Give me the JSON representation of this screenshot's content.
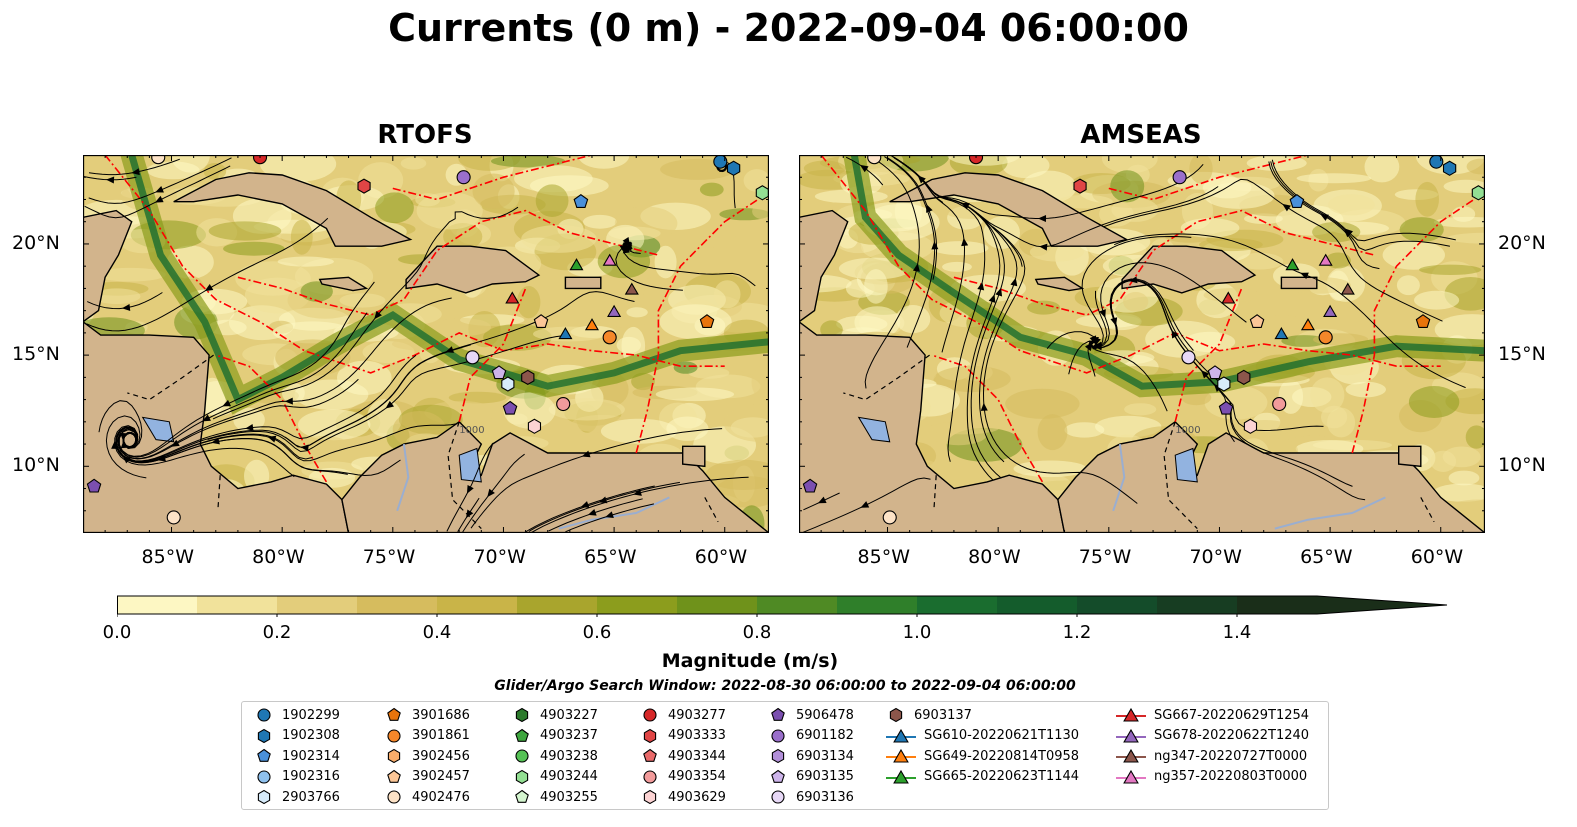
{
  "title": "Currents (0 m) - 2022-09-04 06:00:00",
  "panels": [
    {
      "title": "RTOFS"
    },
    {
      "title": "AMSEAS"
    }
  ],
  "axes": {
    "lon_ticks": [
      "85°W",
      "80°W",
      "75°W",
      "70°W",
      "65°W",
      "60°W"
    ],
    "lat_ticks": [
      "20°N",
      "15°N",
      "10°N"
    ],
    "lon_range": [
      -89,
      -58
    ],
    "lat_range": [
      7,
      24
    ]
  },
  "colorbar": {
    "label": "Magnitude (m/s)",
    "ticks": [
      "0.0",
      "0.2",
      "0.4",
      "0.6",
      "0.8",
      "1.0",
      "1.2",
      "1.4"
    ],
    "range": [
      0,
      1.6
    ],
    "extend": "max",
    "colors": [
      "#fdf7c3",
      "#f1e29b",
      "#e3cd7b",
      "#d6bc5e",
      "#c9b448",
      "#a9a52d",
      "#8c9d1d",
      "#6f921b",
      "#4f8a24",
      "#2f7f2a",
      "#1a6d2f",
      "#145c2c",
      "#144c2a",
      "#173d22",
      "#1a2e19"
    ]
  },
  "contour_label": "1000",
  "search_window": "Glider/Argo Search Window: 2022-08-30 06:00:00 to 2022-09-04 06:00:00",
  "colors": {
    "land": "#d2b48c",
    "pacific": "#92b3e0",
    "eez_line": "#ff0000",
    "streamline": "#000000"
  },
  "legend": {
    "columns": [
      [
        {
          "label": "1902299",
          "marker": "circle",
          "color": "#1f77b4"
        },
        {
          "label": "1902308",
          "marker": "hexagon",
          "color": "#1f77b4"
        },
        {
          "label": "1902314",
          "marker": "pentagon",
          "color": "#4a90d9"
        },
        {
          "label": "1902316",
          "marker": "circle",
          "color": "#8fc1ee"
        },
        {
          "label": "2903766",
          "marker": "hexagon",
          "color": "#d7ebfa"
        }
      ],
      [
        {
          "label": "3901686",
          "marker": "pentagon",
          "color": "#e8740c"
        },
        {
          "label": "3901861",
          "marker": "circle",
          "color": "#f5872a"
        },
        {
          "label": "3902456",
          "marker": "hexagon",
          "color": "#f9ad6b"
        },
        {
          "label": "3902457",
          "marker": "pentagon",
          "color": "#fbc697"
        },
        {
          "label": "4902476",
          "marker": "circle",
          "color": "#fde3c7"
        }
      ],
      [
        {
          "label": "4903227",
          "marker": "hexagon",
          "color": "#2c7a2c"
        },
        {
          "label": "4903237",
          "marker": "pentagon",
          "color": "#3fa63f"
        },
        {
          "label": "4903238",
          "marker": "circle",
          "color": "#55c255"
        },
        {
          "label": "4903244",
          "marker": "hexagon",
          "color": "#93df93"
        },
        {
          "label": "4903255",
          "marker": "pentagon",
          "color": "#d4f5cf"
        }
      ],
      [
        {
          "label": "4903277",
          "marker": "circle",
          "color": "#d62728"
        },
        {
          "label": "4903333",
          "marker": "hexagon",
          "color": "#e04545"
        },
        {
          "label": "4903344",
          "marker": "pentagon",
          "color": "#e96a6a"
        },
        {
          "label": "4903354",
          "marker": "circle",
          "color": "#f29b9b"
        },
        {
          "label": "4903629",
          "marker": "hexagon",
          "color": "#fcd3d3"
        }
      ],
      [
        {
          "label": "5906478",
          "marker": "pentagon",
          "color": "#7b4fb0"
        },
        {
          "label": "6901182",
          "marker": "circle",
          "color": "#9a6fcb"
        },
        {
          "label": "6903134",
          "marker": "hexagon",
          "color": "#b28fd9"
        },
        {
          "label": "6903135",
          "marker": "pentagon",
          "color": "#cdb4ea"
        },
        {
          "label": "6903136",
          "marker": "circle",
          "color": "#e7d8f6"
        }
      ],
      [
        {
          "label": "6903137",
          "marker": "hexagon",
          "color": "#8c564b"
        },
        {
          "label": "SG610-20220621T1130",
          "marker": "triangle-line",
          "color": "#1f77b4"
        },
        {
          "label": "SG649-20220814T0958",
          "marker": "triangle-line",
          "color": "#ff7f0e"
        },
        {
          "label": "SG665-20220623T1144",
          "marker": "triangle-line",
          "color": "#2ca02c"
        }
      ],
      [
        {
          "label": "SG667-20220629T1254",
          "marker": "triangle-line",
          "color": "#d62728"
        },
        {
          "label": "SG678-20220622T1240",
          "marker": "triangle-line",
          "color": "#9467bd"
        },
        {
          "label": "ng347-20220727T0000",
          "marker": "triangle-line",
          "color": "#8c564b"
        },
        {
          "label": "ng357-20220803T0000",
          "marker": "triangle-line",
          "color": "#e377c2"
        }
      ]
    ]
  },
  "markers": [
    {
      "lon": -85.6,
      "lat": 23.9,
      "marker": "circle",
      "color": "#fde3c7"
    },
    {
      "lon": -81,
      "lat": 23.9,
      "marker": "circle",
      "color": "#d62728"
    },
    {
      "lon": -76.3,
      "lat": 22.6,
      "marker": "hexagon",
      "color": "#e04545"
    },
    {
      "lon": -71.8,
      "lat": 23.0,
      "marker": "circle",
      "color": "#9a6fcb"
    },
    {
      "lon": -60.2,
      "lat": 23.7,
      "marker": "circle",
      "color": "#1f77b4"
    },
    {
      "lon": -59.6,
      "lat": 23.4,
      "marker": "hexagon",
      "color": "#1f77b4"
    },
    {
      "lon": -58.3,
      "lat": 22.3,
      "marker": "hexagon",
      "color": "#93df93"
    },
    {
      "lon": -66.5,
      "lat": 21.9,
      "marker": "pentagon",
      "color": "#4a90d9"
    },
    {
      "lon": -69.6,
      "lat": 17.5,
      "marker": "triangle",
      "color": "#d62728"
    },
    {
      "lon": -66.7,
      "lat": 19.0,
      "marker": "triangle",
      "color": "#2ca02c"
    },
    {
      "lon": -65.2,
      "lat": 19.2,
      "marker": "triangle",
      "color": "#e377c2"
    },
    {
      "lon": -64.2,
      "lat": 17.9,
      "marker": "triangle",
      "color": "#8c564b"
    },
    {
      "lon": -65.0,
      "lat": 16.9,
      "marker": "triangle",
      "color": "#9467bd"
    },
    {
      "lon": -66.0,
      "lat": 16.3,
      "marker": "triangle",
      "color": "#ff7f0e"
    },
    {
      "lon": -67.2,
      "lat": 15.9,
      "marker": "triangle",
      "color": "#1f77b4"
    },
    {
      "lon": -65.2,
      "lat": 15.8,
      "marker": "circle",
      "color": "#f5872a"
    },
    {
      "lon": -60.8,
      "lat": 16.5,
      "marker": "pentagon",
      "color": "#e8740c"
    },
    {
      "lon": -68.3,
      "lat": 16.5,
      "marker": "pentagon",
      "color": "#fbc697"
    },
    {
      "lon": -71.4,
      "lat": 14.9,
      "marker": "circle",
      "color": "#e7d8f6"
    },
    {
      "lon": -70.2,
      "lat": 14.2,
      "marker": "pentagon",
      "color": "#cdb4ea"
    },
    {
      "lon": -69.8,
      "lat": 13.7,
      "marker": "hexagon",
      "color": "#d7ebfa"
    },
    {
      "lon": -68.9,
      "lat": 14.0,
      "marker": "hexagon",
      "color": "#8c564b"
    },
    {
      "lon": -69.7,
      "lat": 12.6,
      "marker": "pentagon",
      "color": "#7b4fb0"
    },
    {
      "lon": -67.3,
      "lat": 12.8,
      "marker": "circle",
      "color": "#f29b9b"
    },
    {
      "lon": -68.6,
      "lat": 11.8,
      "marker": "hexagon",
      "color": "#fcd3d3"
    },
    {
      "lon": -88.5,
      "lat": 9.1,
      "marker": "pentagon",
      "color": "#7b4fb0"
    },
    {
      "lon": -84.9,
      "lat": 7.7,
      "marker": "circle",
      "color": "#fde3c7"
    }
  ]
}
